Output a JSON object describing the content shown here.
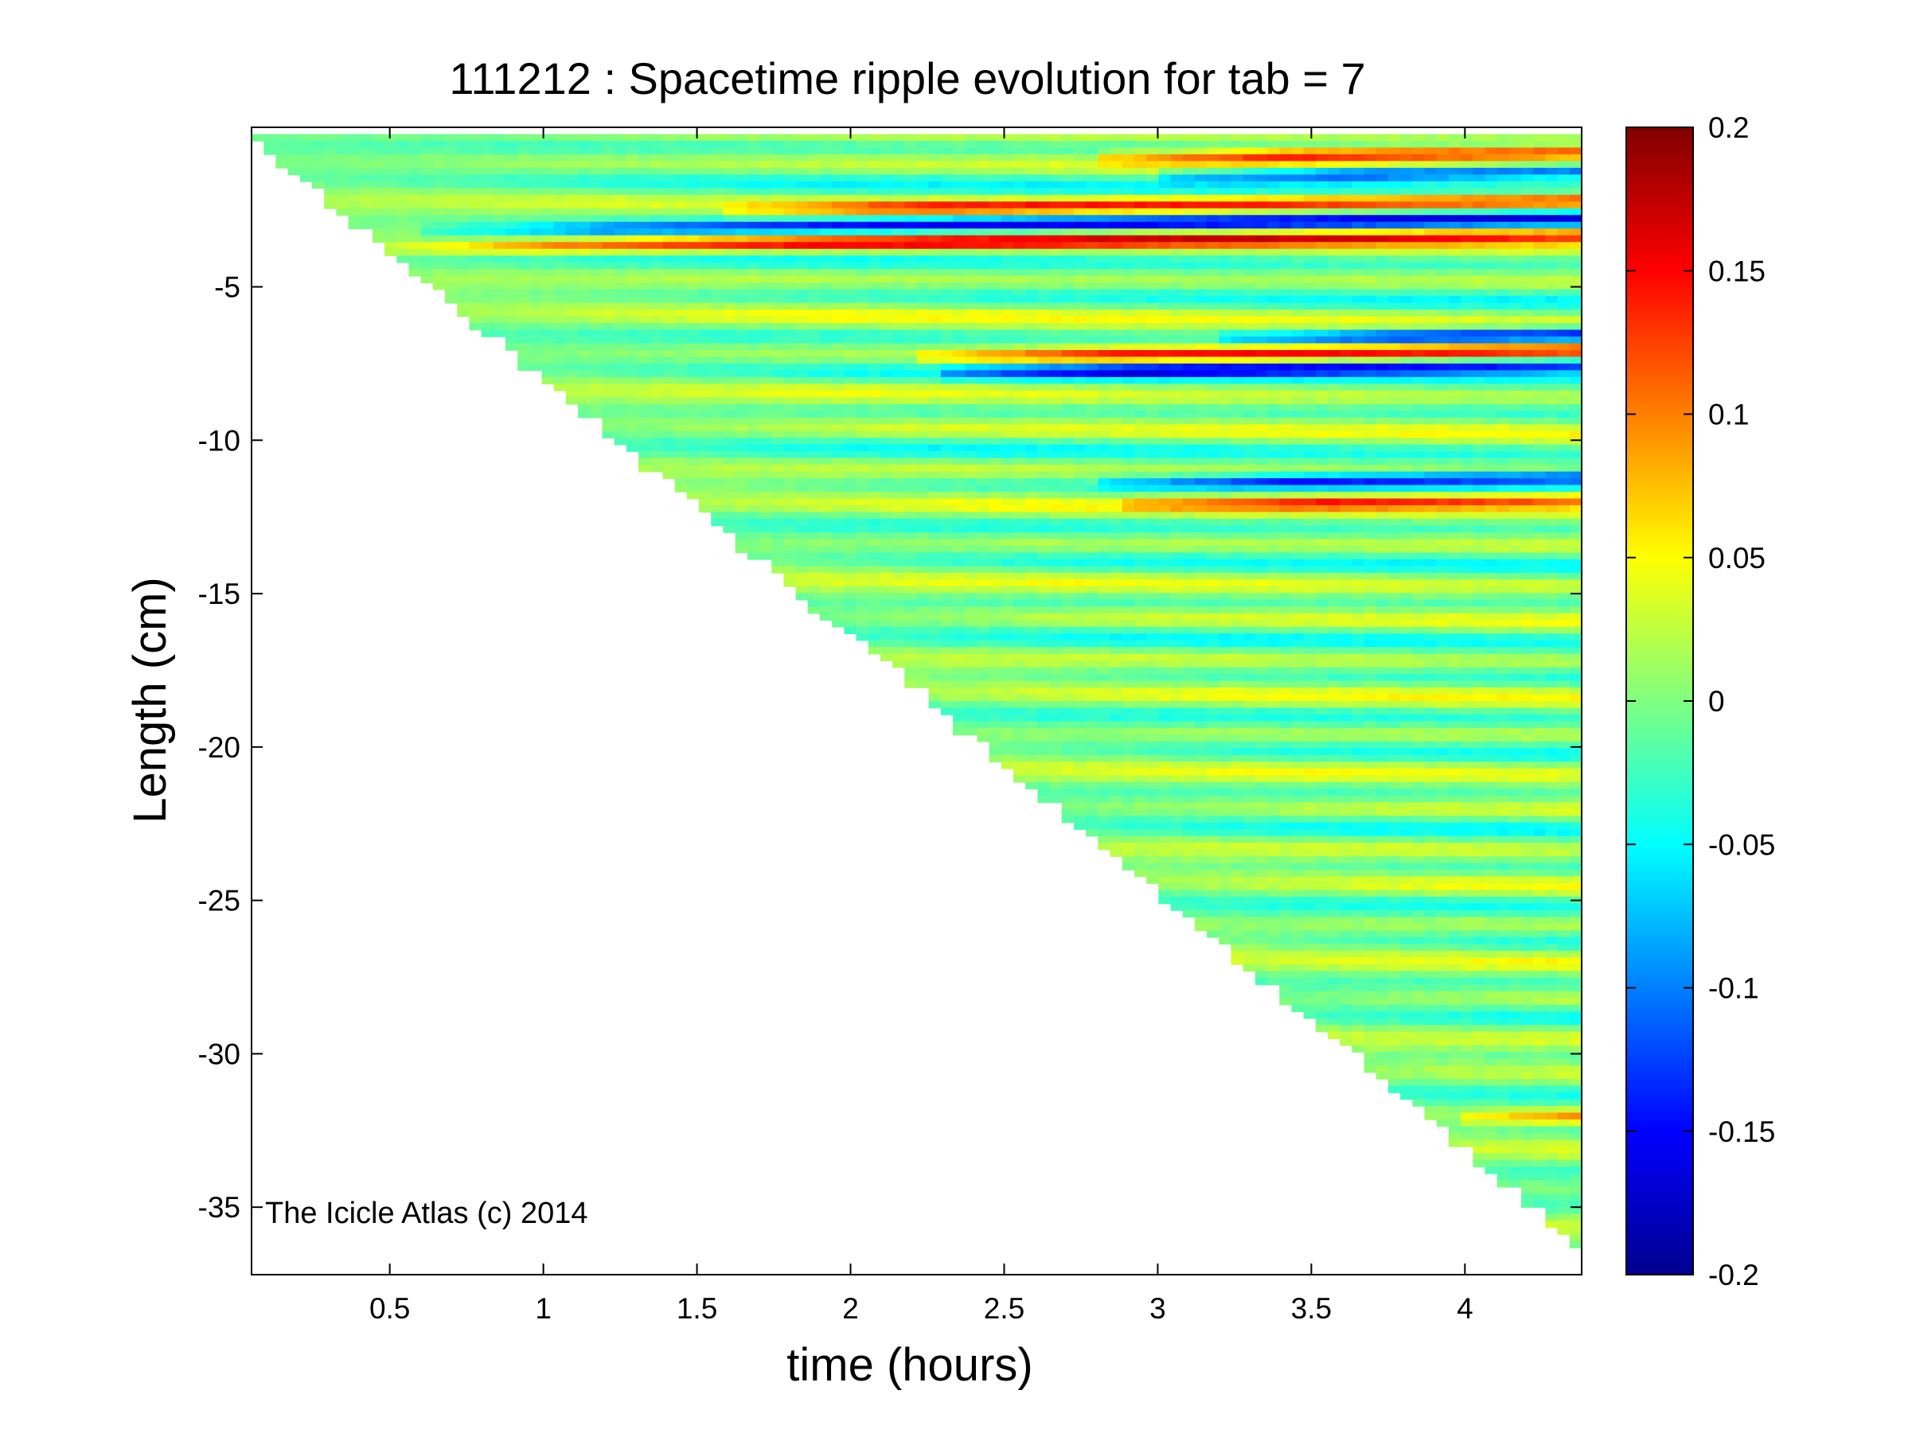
{
  "chart_data": {
    "type": "heatmap",
    "title": "111212 : Spacetime ripple evolution for tab = 7",
    "xlabel": "time (hours)",
    "ylabel": "Length (cm)",
    "xlim": [
      0.05,
      4.38
    ],
    "ylim": [
      -37.2,
      0.2
    ],
    "xticks": [
      0.5,
      1,
      1.5,
      2,
      2.5,
      3,
      3.5,
      4
    ],
    "xtick_labels": [
      "0.5",
      "1",
      "1.5",
      "2",
      "2.5",
      "3",
      "3.5",
      "4"
    ],
    "yticks": [
      -5,
      -10,
      -15,
      -20,
      -25,
      -30,
      -35
    ],
    "ytick_labels": [
      "-5",
      "-10",
      "-15",
      "-20",
      "-25",
      "-30",
      "-35"
    ],
    "colorbar": {
      "range": [
        -0.2,
        0.2
      ],
      "ticks": [
        0.2,
        0.15,
        0.1,
        0.05,
        0,
        -0.05,
        -0.1,
        -0.15,
        -0.2
      ],
      "tick_labels": [
        "0.2",
        "0.15",
        "0.1",
        "0.05",
        "0",
        "-0.05",
        "-0.1",
        "-0.15",
        "-0.2"
      ],
      "colormap": "jet"
    },
    "data_boundary": {
      "description": "data exists only above the icicle tip line; the tip grows from y=0 at t=0.05 h to y=-36.2 at t=4.38 h",
      "tip_start": [
        0.05,
        0.0
      ],
      "tip_end": [
        4.38,
        -36.2
      ]
    },
    "strong_bands": [
      {
        "y": -0.8,
        "t_start": 2.8,
        "amplitude": 0.14
      },
      {
        "y": -1.4,
        "t_start": 3.0,
        "amplitude": -0.15
      },
      {
        "y": -2.5,
        "t_start": 1.6,
        "amplitude": 0.12
      },
      {
        "y": -3.2,
        "t_start": 0.6,
        "amplitude": -0.14
      },
      {
        "y": -3.8,
        "t_start": 0.3,
        "amplitude": 0.13
      },
      {
        "y": -6.7,
        "t_start": 3.2,
        "amplitude": -0.13
      },
      {
        "y": -7.3,
        "t_start": 2.2,
        "amplitude": 0.12
      },
      {
        "y": -7.8,
        "t_start": 2.3,
        "amplitude": -0.14
      },
      {
        "y": -11.4,
        "t_start": 2.8,
        "amplitude": -0.12
      },
      {
        "y": -12.1,
        "t_start": 2.9,
        "amplitude": 0.11
      },
      {
        "y": -32.1,
        "t_start": 4.0,
        "amplitude": 0.12
      }
    ],
    "watermark": "The Icicle Atlas (c) 2014"
  },
  "colors": {
    "background": "#ffffff",
    "axis": "#000000"
  }
}
